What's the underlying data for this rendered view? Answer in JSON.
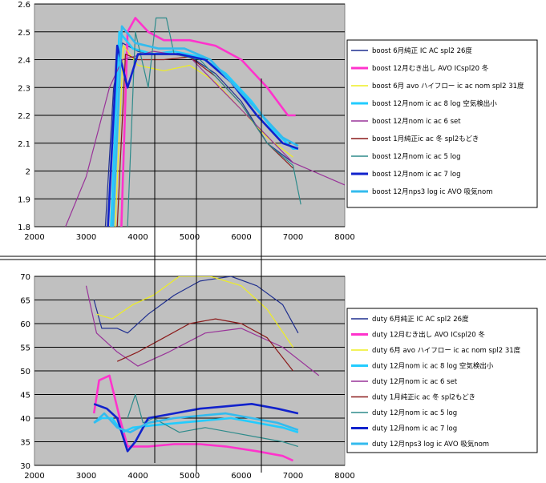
{
  "chart_data": [
    {
      "type": "line",
      "title": "",
      "xlabel": "",
      "ylabel": "",
      "xlim": [
        2000,
        8000
      ],
      "ylim": [
        1.8,
        2.6
      ],
      "x_ticks": [
        "2000",
        "3000",
        "4000",
        "5000",
        "6000",
        "7000",
        "8000"
      ],
      "y_ticks": [
        "1.8",
        "1.9",
        "2",
        "2.1",
        "2.2",
        "2.3",
        "2.4",
        "2.5",
        "2.6"
      ],
      "grid": "horizontal",
      "legend_position": "right",
      "series": [
        {
          "name": "boost 6月純正 IC AC spl2 26度",
          "color": "#1f2f8f",
          "width": 1.2,
          "points": [
            [
              3370,
              1.8
            ],
            [
              3530,
              2.3
            ],
            [
              3700,
              2.46
            ],
            [
              4000,
              2.43
            ],
            [
              4300,
              2.42
            ],
            [
              4700,
              2.43
            ],
            [
              5100,
              2.4
            ],
            [
              5500,
              2.35
            ],
            [
              6000,
              2.25
            ],
            [
              6500,
              2.1
            ],
            [
              7000,
              2.03
            ]
          ]
        },
        {
          "name": "boost 12月むき出し AVO ICspl20 冬",
          "color": "#ff33cc",
          "width": 2.6,
          "points": [
            [
              3680,
              1.8
            ],
            [
              3800,
              2.5
            ],
            [
              3950,
              2.55
            ],
            [
              4200,
              2.5
            ],
            [
              4500,
              2.47
            ],
            [
              5000,
              2.47
            ],
            [
              5500,
              2.45
            ],
            [
              6000,
              2.4
            ],
            [
              6500,
              2.3
            ],
            [
              6900,
              2.2
            ],
            [
              7050,
              2.2
            ]
          ]
        },
        {
          "name": "boost 6月 avo ハイフロー ic ac nom spl2 31度",
          "color": "#eeee22",
          "width": 1.2,
          "points": [
            [
              3560,
              1.8
            ],
            [
              3720,
              2.45
            ],
            [
              4000,
              2.38
            ],
            [
              4500,
              2.36
            ],
            [
              5000,
              2.38
            ],
            [
              5500,
              2.32
            ],
            [
              6000,
              2.22
            ],
            [
              6500,
              2.12
            ],
            [
              7000,
              2.05
            ]
          ]
        },
        {
          "name": "boost 12月nom ic ac 8 log 空気検出小",
          "color": "#22ccff",
          "width": 2.6,
          "points": [
            [
              3480,
              1.8
            ],
            [
              3640,
              2.5
            ],
            [
              3900,
              2.44
            ],
            [
              4300,
              2.42
            ],
            [
              4700,
              2.43
            ],
            [
              5200,
              2.41
            ],
            [
              5700,
              2.35
            ],
            [
              6200,
              2.25
            ],
            [
              6600,
              2.15
            ],
            [
              7000,
              2.08
            ],
            [
              7100,
              2.08
            ]
          ]
        },
        {
          "name": "boost 12月nom ic ac 6 set",
          "color": "#993399",
          "width": 1.2,
          "points": [
            [
              2600,
              1.8
            ],
            [
              3000,
              1.98
            ],
            [
              3450,
              2.3
            ],
            [
              3700,
              2.4
            ],
            [
              4300,
              2.43
            ],
            [
              5000,
              2.41
            ],
            [
              6000,
              2.22
            ],
            [
              7000,
              2.03
            ],
            [
              8000,
              1.95
            ]
          ]
        },
        {
          "name": "boost 1月純正ic ac 冬 spl2もどき",
          "color": "#8b1a1a",
          "width": 1.2,
          "points": [
            [
              3600,
              1.8
            ],
            [
              3760,
              2.42
            ],
            [
              4000,
              2.4
            ],
            [
              4500,
              2.4
            ],
            [
              5000,
              2.41
            ],
            [
              5500,
              2.34
            ],
            [
              6000,
              2.24
            ],
            [
              6500,
              2.1
            ],
            [
              7000,
              2.01
            ]
          ]
        },
        {
          "name": "boost 12月nom ic ac 5 log",
          "color": "#2e8b8b",
          "width": 1.2,
          "points": [
            [
              3800,
              1.8
            ],
            [
              3950,
              2.5
            ],
            [
              4200,
              2.3
            ],
            [
              4350,
              2.55
            ],
            [
              4550,
              2.55
            ],
            [
              4700,
              2.42
            ],
            [
              5200,
              2.4
            ],
            [
              6000,
              2.24
            ],
            [
              6500,
              2.1
            ],
            [
              7000,
              2.02
            ],
            [
              7150,
              1.88
            ]
          ]
        },
        {
          "name": "boost 12月nom ic ac 7 log",
          "color": "#1122cc",
          "width": 2.6,
          "points": [
            [
              3420,
              1.8
            ],
            [
              3600,
              2.45
            ],
            [
              3800,
              2.3
            ],
            [
              4000,
              2.42
            ],
            [
              4300,
              2.42
            ],
            [
              4800,
              2.42
            ],
            [
              5300,
              2.4
            ],
            [
              5800,
              2.32
            ],
            [
              6300,
              2.2
            ],
            [
              6800,
              2.1
            ],
            [
              7100,
              2.08
            ]
          ]
        },
        {
          "name": "boost 12月nps3 log ic AVO 吸気nom",
          "color": "#33bbee",
          "width": 2.6,
          "points": [
            [
              3520,
              1.8
            ],
            [
              3690,
              2.52
            ],
            [
              3950,
              2.46
            ],
            [
              4400,
              2.44
            ],
            [
              4900,
              2.44
            ],
            [
              5400,
              2.4
            ],
            [
              5900,
              2.3
            ],
            [
              6400,
              2.2
            ],
            [
              6800,
              2.12
            ],
            [
              7100,
              2.09
            ]
          ]
        }
      ]
    },
    {
      "type": "line",
      "title": "",
      "xlabel": "",
      "ylabel": "",
      "xlim": [
        2000,
        8000
      ],
      "ylim": [
        30,
        70
      ],
      "x_ticks": [
        "2000",
        "3000",
        "4000",
        "5000",
        "6000",
        "7000",
        "8000"
      ],
      "y_ticks": [
        "30",
        "35",
        "40",
        "45",
        "50",
        "55",
        "60",
        "65",
        "70"
      ],
      "grid": "horizontal",
      "legend_position": "right",
      "series": [
        {
          "name": "duty 6月純正 IC AC spl2 26度",
          "color": "#1f2f8f",
          "width": 1.2,
          "points": [
            [
              3150,
              65
            ],
            [
              3300,
              59
            ],
            [
              3600,
              59
            ],
            [
              3800,
              58
            ],
            [
              4200,
              62
            ],
            [
              4700,
              66
            ],
            [
              5200,
              69
            ],
            [
              5800,
              70
            ],
            [
              6300,
              68
            ],
            [
              6800,
              64
            ],
            [
              7100,
              58
            ]
          ]
        },
        {
          "name": "duty 12月むき出し AVO ICspl20 冬",
          "color": "#ff33cc",
          "width": 2.6,
          "points": [
            [
              3150,
              41
            ],
            [
              3250,
              48
            ],
            [
              3450,
              49
            ],
            [
              3650,
              40
            ],
            [
              3800,
              34
            ],
            [
              4200,
              34
            ],
            [
              4700,
              34.5
            ],
            [
              5200,
              34.5
            ],
            [
              5700,
              34
            ],
            [
              6300,
              33
            ],
            [
              6800,
              32
            ],
            [
              7000,
              31
            ]
          ]
        },
        {
          "name": "duty 6月 avo ハイフロー ic ac nom spl2 31度",
          "color": "#eeee22",
          "width": 1.2,
          "points": [
            [
              3200,
              62
            ],
            [
              3500,
              61
            ],
            [
              3900,
              64
            ],
            [
              4300,
              66
            ],
            [
              4800,
              70
            ],
            [
              5400,
              70
            ],
            [
              6000,
              68
            ],
            [
              6500,
              63
            ],
            [
              7000,
              55
            ]
          ]
        },
        {
          "name": "duty 12月nom ic ac 8 log 空気検出小",
          "color": "#22ccff",
          "width": 2.6,
          "points": [
            [
              3150,
              39
            ],
            [
              3300,
              40
            ],
            [
              3500,
              40
            ],
            [
              3700,
              37
            ],
            [
              3900,
              38
            ],
            [
              4300,
              38.5
            ],
            [
              4800,
              39
            ],
            [
              5300,
              39.5
            ],
            [
              5800,
              40
            ],
            [
              6300,
              39
            ],
            [
              6800,
              38
            ],
            [
              7100,
              37
            ]
          ]
        },
        {
          "name": "duty 12月nom ic ac 6 set",
          "color": "#993399",
          "width": 1.2,
          "points": [
            [
              3000,
              68
            ],
            [
              3200,
              58
            ],
            [
              3600,
              54
            ],
            [
              4000,
              51
            ],
            [
              4600,
              54
            ],
            [
              5300,
              58
            ],
            [
              6000,
              59
            ],
            [
              6800,
              55
            ],
            [
              7500,
              49
            ]
          ]
        },
        {
          "name": "duty 1月純正ic ac 冬 spl2もどき",
          "color": "#8b1a1a",
          "width": 1.2,
          "points": [
            [
              3600,
              52
            ],
            [
              4000,
              54
            ],
            [
              4500,
              57
            ],
            [
              5000,
              60
            ],
            [
              5500,
              61
            ],
            [
              6000,
              60
            ],
            [
              6500,
              57
            ],
            [
              7000,
              50
            ]
          ]
        },
        {
          "name": "duty 12月nom ic ac 5 log",
          "color": "#2e8b8b",
          "width": 1.2,
          "points": [
            [
              3800,
              40
            ],
            [
              3950,
              45
            ],
            [
              4100,
              39
            ],
            [
              4300,
              40
            ],
            [
              4800,
              37
            ],
            [
              5300,
              38
            ],
            [
              5800,
              37
            ],
            [
              6300,
              36
            ],
            [
              6800,
              35
            ],
            [
              7100,
              34
            ]
          ]
        },
        {
          "name": "duty 12月nom ic ac 7 log",
          "color": "#1122cc",
          "width": 2.6,
          "points": [
            [
              3150,
              43
            ],
            [
              3400,
              42
            ],
            [
              3600,
              40
            ],
            [
              3800,
              33
            ],
            [
              3950,
              35
            ],
            [
              4200,
              40
            ],
            [
              4700,
              41
            ],
            [
              5200,
              42
            ],
            [
              5700,
              42.5
            ],
            [
              6200,
              43
            ],
            [
              6700,
              42
            ],
            [
              7100,
              41
            ]
          ]
        },
        {
          "name": "duty 12月nps3 log ic AVO 吸気nom",
          "color": "#33bbee",
          "width": 2.6,
          "points": [
            [
              3150,
              39
            ],
            [
              3350,
              41
            ],
            [
              3600,
              38
            ],
            [
              3850,
              37
            ],
            [
              4200,
              39
            ],
            [
              4700,
              40
            ],
            [
              5200,
              40.5
            ],
            [
              5700,
              41
            ],
            [
              6200,
              40
            ],
            [
              6700,
              39
            ],
            [
              7100,
              37.5
            ]
          ]
        }
      ]
    }
  ]
}
